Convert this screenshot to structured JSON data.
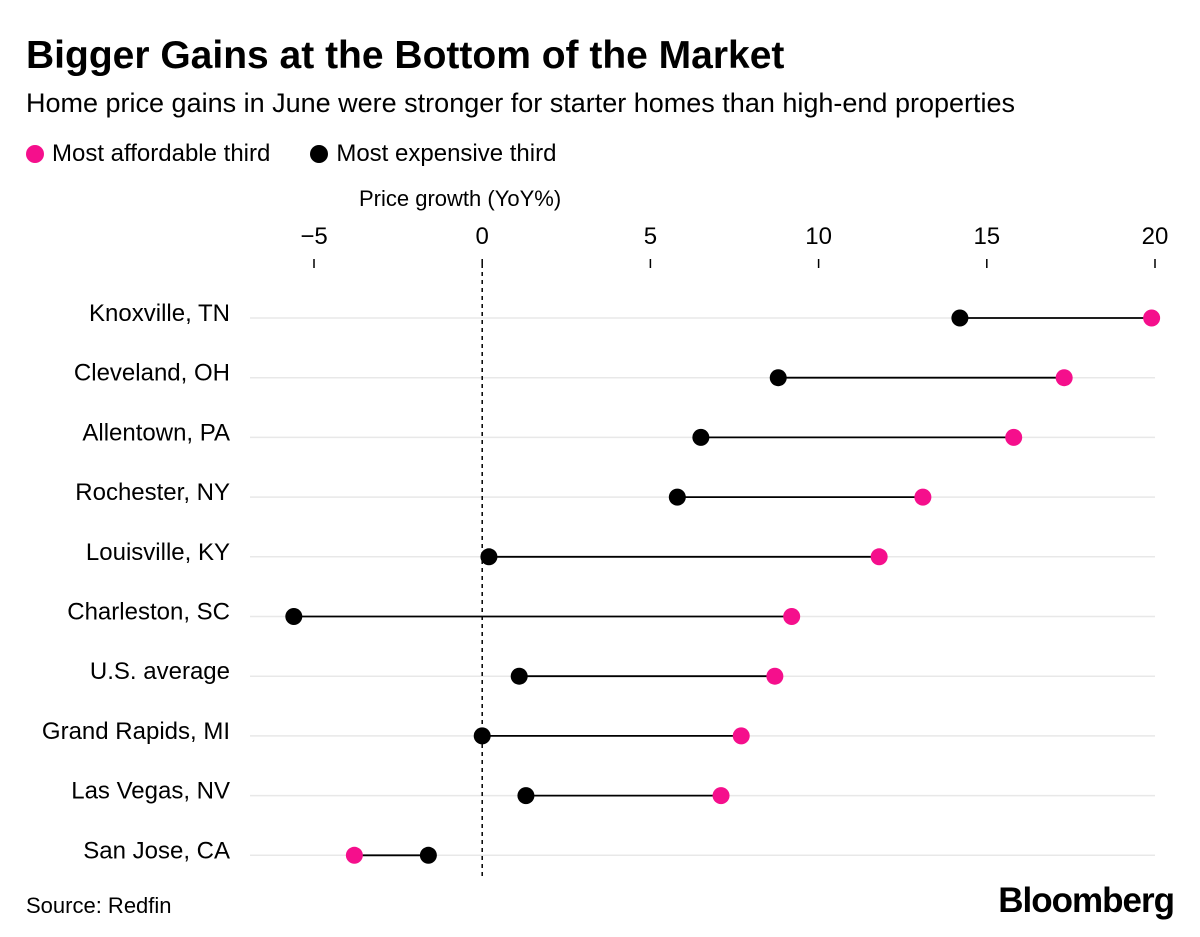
{
  "title": "Bigger Gains at the Bottom of the Market",
  "subtitle": "Home price gains in June were stronger for starter homes than high-end properties",
  "legend": {
    "affordable_label": "Most affordable third",
    "expensive_label": "Most expensive third"
  },
  "source": "Source: Redfin",
  "brand": "Bloomberg",
  "colors": {
    "affordable": "#f50f8c",
    "expensive": "#000000",
    "gridline": "#e8e8e8",
    "connector": "#000000"
  },
  "chart_data": {
    "type": "dot-plot",
    "xlabel": "Price growth (YoY%)",
    "xlim": [
      -5,
      20
    ],
    "xticks": [
      -5,
      0,
      5,
      10,
      15,
      20
    ],
    "xtick_labels": [
      "−5",
      "0",
      "5",
      "10",
      "15",
      "20"
    ],
    "reference_line": 0,
    "categories": [
      "Knoxville, TN",
      "Cleveland, OH",
      "Allentown, PA",
      "Rochester, NY",
      "Louisville, KY",
      "Charleston, SC",
      "U.S. average",
      "Grand Rapids, MI",
      "Las Vegas, NV",
      "San Jose, CA"
    ],
    "series": [
      {
        "name": "Most affordable third",
        "values": [
          19.9,
          17.3,
          15.8,
          13.1,
          11.8,
          9.2,
          8.7,
          7.7,
          7.1,
          -3.8
        ]
      },
      {
        "name": "Most expensive third",
        "values": [
          14.2,
          8.8,
          6.5,
          5.8,
          0.2,
          -5.6,
          1.1,
          0.0,
          1.3,
          -1.6
        ]
      }
    ]
  }
}
